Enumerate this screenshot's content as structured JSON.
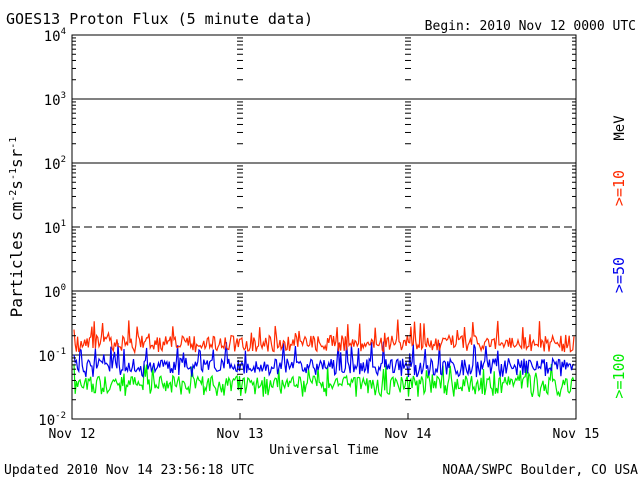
{
  "chart_data": {
    "type": "line",
    "title": "GOES13 Proton Flux (5 minute data)",
    "begin_label": "Begin: 2010 Nov 12 0000 UTC",
    "xlabel": "Universal Time",
    "ylabel_main": "Particles cm",
    "ylabel_sup1": "-2",
    "ylabel_mid1": "s",
    "ylabel_sup2": "-1",
    "ylabel_mid2": "sr",
    "ylabel_sup3": "-1",
    "x_ticks": [
      "Nov 12",
      "Nov 13",
      "Nov 14",
      "Nov 15"
    ],
    "x_range_days": [
      0,
      3
    ],
    "y_scale": "log",
    "ylim": [
      0.01,
      10000
    ],
    "y_ticks": [
      {
        "base": "10",
        "exp": "4"
      },
      {
        "base": "10",
        "exp": "3"
      },
      {
        "base": "10",
        "exp": "2"
      },
      {
        "base": "10",
        "exp": "1"
      },
      {
        "base": "10",
        "exp": "0"
      },
      {
        "base": "10",
        "exp": "-1"
      },
      {
        "base": "10",
        "exp": "-2"
      }
    ],
    "threshold_lines": [
      {
        "value": 1000,
        "style": "solid"
      },
      {
        "value": 100,
        "style": "solid"
      },
      {
        "value": 10,
        "style": "dashed"
      },
      {
        "value": 1,
        "style": "solid"
      },
      {
        "value": 0.1,
        "style": "solid"
      }
    ],
    "series": [
      {
        "name": ">=10",
        "color": "#ff2a00",
        "center": 0.15,
        "low": 0.11,
        "high": 0.36
      },
      {
        "name": ">=50",
        "color": "#0000ee",
        "center": 0.065,
        "low": 0.045,
        "high": 0.17
      },
      {
        "name": ">=100",
        "color": "#00ee00",
        "center": 0.035,
        "low": 0.022,
        "high": 0.075
      }
    ],
    "unit_label": "MeV",
    "updated": "Updated 2010 Nov 14 23:56:18 UTC",
    "source": "NOAA/SWPC Boulder, CO USA"
  }
}
